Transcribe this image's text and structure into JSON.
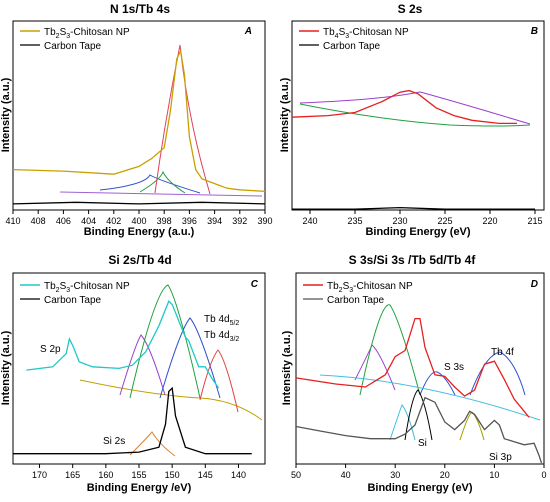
{
  "colors": {
    "gold": "#c8a000",
    "red": "#e62020",
    "cyan": "#20c8c8",
    "black": "#000000",
    "blue": "#3050d0",
    "green": "#20a040",
    "purple": "#9a40d0",
    "cyanfit": "#40c0e0",
    "orange": "#e08030",
    "olive": "#a0a000"
  },
  "chart_data": [
    {
      "type": "line",
      "panel": "A",
      "title": "N 1s/Tb 4s",
      "xlabel": "Binding Energy (a.u.)",
      "ylabel": "Intensity (a.u.)",
      "xlim": [
        410,
        390
      ],
      "xticks": [
        410,
        408,
        406,
        404,
        402,
        400,
        398,
        396,
        394,
        392,
        390
      ],
      "yticks": [],
      "grid": false,
      "legend_position": "top-left",
      "series": [
        {
          "name": "Tb$_2$S$_3$-Chitosan NP",
          "legend_text": [
            "Tb",
            "2",
            "S",
            "3",
            "-Chitosan NP"
          ],
          "color": "#c8a000",
          "x": [
            410,
            406,
            402,
            400,
            399,
            398,
            397.5,
            397,
            396.7,
            396.4,
            396,
            395.5,
            395,
            394,
            393,
            392,
            390
          ],
          "y": [
            0.24,
            0.23,
            0.21,
            0.26,
            0.31,
            0.38,
            0.62,
            0.95,
            1.0,
            0.85,
            0.45,
            0.24,
            0.18,
            0.15,
            0.12,
            0.11,
            0.1
          ]
        },
        {
          "name": "Carbon Tape",
          "color": "#000000",
          "x": [
            410,
            405,
            400,
            395,
            390
          ],
          "y": [
            0.02,
            0.03,
            0.02,
            0.03,
            0.02
          ]
        }
      ]
    },
    {
      "type": "line",
      "panel": "B",
      "title": "S 2s",
      "xlabel": "Binding Energy (eV)",
      "ylabel": "Intensity (a.u.)",
      "xlim": [
        242,
        214
      ],
      "xticks": [
        240,
        235,
        230,
        225,
        220,
        215
      ],
      "yticks": [],
      "grid": false,
      "legend_position": "top-left",
      "series": [
        {
          "name": "Tb$_4$S$_3$-Chitosan NP",
          "legend_text": [
            "Tb",
            "4",
            "S",
            "3",
            "-Chitosan NP"
          ],
          "color": "#e62020",
          "x": [
            242,
            238,
            235,
            232,
            230,
            229,
            228,
            226,
            224,
            222,
            219,
            217
          ],
          "y": [
            0.64,
            0.65,
            0.67,
            0.74,
            0.8,
            0.81,
            0.79,
            0.7,
            0.65,
            0.62,
            0.6,
            0.6
          ]
        },
        {
          "name": "Carbon Tape",
          "color": "#000000",
          "x": [
            242,
            235,
            230,
            225,
            220,
            215
          ],
          "y": [
            0.05,
            0.05,
            0.06,
            0.05,
            0.05,
            0.05
          ]
        }
      ]
    },
    {
      "type": "line",
      "panel": "C",
      "title": "Si 2s/Tb 4d",
      "xlabel": "Binding Energy /eV)",
      "ylabel": "Intensity (a.u.)",
      "xlim": [
        174,
        136
      ],
      "xticks": [
        170,
        165,
        160,
        155,
        150,
        145,
        140
      ],
      "yticks": [],
      "grid": false,
      "legend_position": "top-left",
      "series": [
        {
          "name": "Tb$_2$S$_3$-Chitosan NP",
          "legend_text": [
            "Tb",
            "2",
            "S",
            "3",
            "-Chitosan NP"
          ],
          "color": "#20c8c8",
          "x": [
            172,
            168,
            166,
            165.5,
            165,
            164,
            162,
            158,
            156,
            154,
            152,
            150.5,
            150,
            148,
            147.5,
            146,
            145,
            144,
            143
          ],
          "y": [
            0.53,
            0.55,
            0.63,
            0.72,
            0.68,
            0.58,
            0.55,
            0.54,
            0.56,
            0.64,
            0.8,
            0.95,
            0.93,
            0.73,
            0.71,
            0.55,
            0.55,
            0.48,
            0.42
          ]
        },
        {
          "name": "Carbon Tape",
          "color": "#000000",
          "x": [
            174,
            160,
            155,
            152,
            151,
            150.5,
            150,
            149.5,
            148,
            145,
            140,
            138
          ],
          "y": [
            0.02,
            0.02,
            0.03,
            0.06,
            0.2,
            0.4,
            0.42,
            0.25,
            0.06,
            0.02,
            0.02,
            0.02
          ]
        }
      ]
    },
    {
      "type": "line",
      "panel": "D",
      "title": "S 3s/Si 3s /Tb 5d/Tb 4f",
      "xlabel": "Binding Energy (eV)",
      "ylabel": "Intensity (a.u.)",
      "xlim": [
        50,
        0
      ],
      "xticks": [
        50,
        40,
        30,
        20,
        10,
        0
      ],
      "yticks": [],
      "grid": false,
      "legend_position": "top-left",
      "series": [
        {
          "name": "Tb$_2$S$_3$-Chitosan NP",
          "legend_text": [
            "Tb",
            "2",
            "S",
            "3",
            "-Chitosan NP"
          ],
          "color": "#e62020",
          "x": [
            50,
            42,
            36,
            32,
            30,
            28,
            26,
            25,
            24,
            22,
            20,
            18,
            16,
            14,
            12,
            10,
            8,
            6,
            4,
            3
          ],
          "y": [
            0.56,
            0.52,
            0.5,
            0.58,
            0.7,
            0.74,
            0.95,
            0.95,
            0.76,
            0.58,
            0.57,
            0.5,
            0.44,
            0.48,
            0.65,
            0.67,
            0.55,
            0.42,
            0.34,
            0.3
          ]
        },
        {
          "name": "Carbon Tape",
          "color": "#555555",
          "x": [
            50,
            45,
            40,
            35,
            30,
            28,
            26,
            24,
            22,
            20,
            18,
            16,
            15,
            14,
            12,
            10,
            9,
            8,
            6,
            4,
            2,
            1,
            0.5
          ],
          "y": [
            0.24,
            0.21,
            0.18,
            0.16,
            0.16,
            0.19,
            0.25,
            0.43,
            0.4,
            0.27,
            0.22,
            0.28,
            0.34,
            0.32,
            0.22,
            0.28,
            0.25,
            0.16,
            0.14,
            0.12,
            0.13,
            0.05,
            0.0
          ]
        }
      ]
    }
  ],
  "annotations": {
    "panel_a": {
      "corner": "A"
    },
    "panel_b": {
      "corner": "B"
    },
    "panel_c": {
      "corner": "C",
      "s2p": "S 2p",
      "tb4d": "Tb 4d",
      "sub52": "5/2",
      "sub32": "3/2",
      "si2s": "Si 2s"
    },
    "panel_d": {
      "corner": "D",
      "s3s": "S 3s",
      "tb4f": "Tb 4f",
      "si": "Si",
      "si3p": "Si 3p"
    }
  }
}
